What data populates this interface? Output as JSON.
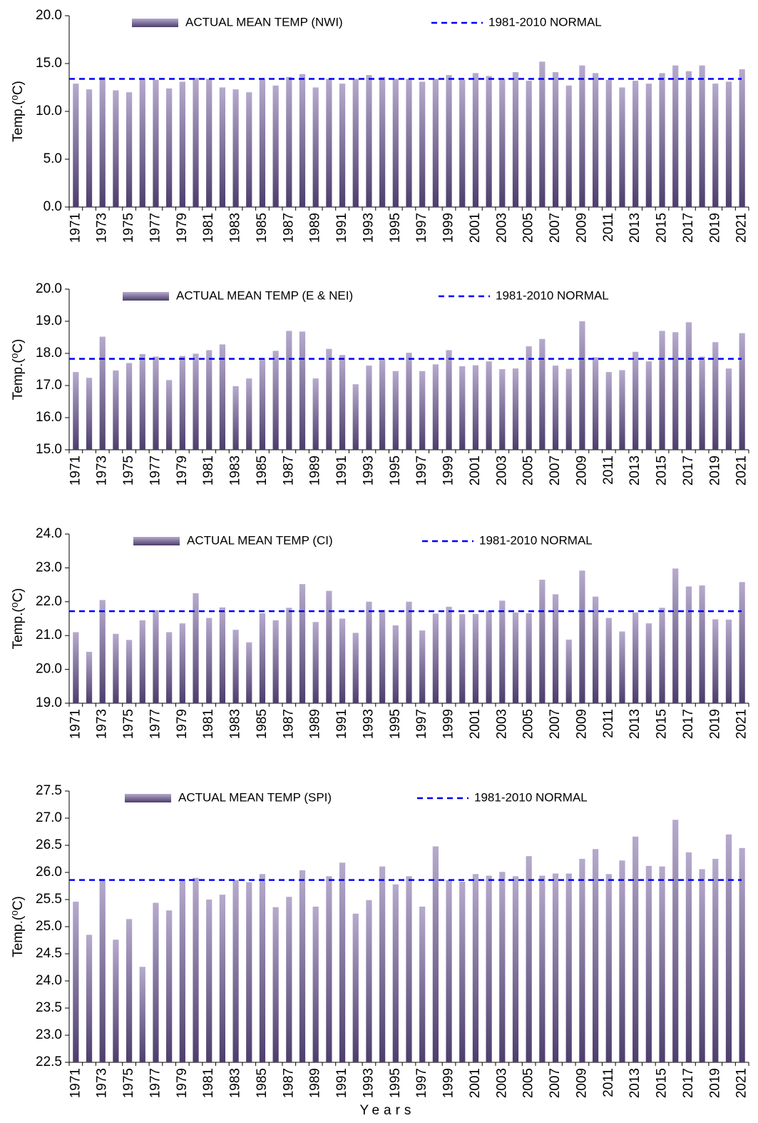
{
  "chart_data": [
    {
      "type": "bar",
      "y_label": "Temp.(⁰C)",
      "categories": [
        "1971",
        null,
        "1973",
        null,
        "1975",
        null,
        "1977",
        null,
        "1979",
        null,
        "1981",
        null,
        "1983",
        null,
        "1985",
        null,
        "1987",
        null,
        "1989",
        null,
        "1991",
        null,
        "1993",
        null,
        "1995",
        null,
        "1997",
        null,
        "1999",
        null,
        "2001",
        null,
        "2003",
        null,
        "2005",
        null,
        "2007",
        null,
        "2009",
        null,
        "2011",
        null,
        "2013",
        null,
        "2015",
        null,
        "2017",
        null,
        "2019",
        null,
        "2021"
      ],
      "series": [
        {
          "name": "ACTUAL MEAN TEMP (NWI)",
          "color": "#7a6a9a",
          "values": [
            12.9,
            12.3,
            13.6,
            12.2,
            12.0,
            13.4,
            13.3,
            12.4,
            13.1,
            13.5,
            13.4,
            12.5,
            12.3,
            12.0,
            13.4,
            12.7,
            13.6,
            13.9,
            12.5,
            13.4,
            12.9,
            13.4,
            13.8,
            13.6,
            13.4,
            13.4,
            13.1,
            13.4,
            13.8,
            13.3,
            14.0,
            13.7,
            13.4,
            14.1,
            13.2,
            15.2,
            14.1,
            12.7,
            14.8,
            14.0,
            13.3,
            12.5,
            13.2,
            12.9,
            14.0,
            14.8,
            14.2,
            14.8,
            12.9,
            13.1,
            14.4
          ]
        }
      ],
      "reference_line": {
        "name": "1981-2010 NORMAL",
        "value": 13.4,
        "color": "#0000ff"
      },
      "ylim": [
        0,
        20
      ],
      "yticks": [
        {
          "value": 0,
          "label": "0.0"
        },
        {
          "value": 5,
          "label": "5.0"
        },
        {
          "value": 10,
          "label": "10.0"
        },
        {
          "value": 15,
          "label": "15.0"
        },
        {
          "value": 20,
          "label": "20.0"
        }
      ]
    },
    {
      "type": "bar",
      "y_label": "Temp.(⁰C)",
      "categories": [
        "1971",
        null,
        "1973",
        null,
        "1975",
        null,
        "1977",
        null,
        "1979",
        null,
        "1981",
        null,
        "1983",
        null,
        "1985",
        null,
        "1987",
        null,
        "1989",
        null,
        "1991",
        null,
        "1993",
        null,
        "1995",
        null,
        "1997",
        null,
        "1999",
        null,
        "2001",
        null,
        "2003",
        null,
        "2005",
        null,
        "2007",
        null,
        "2009",
        null,
        "2011",
        null,
        "2013",
        null,
        "2015",
        null,
        "2017",
        null,
        "2019",
        null,
        "2021"
      ],
      "series": [
        {
          "name": "ACTUAL MEAN TEMP (E & NEI)",
          "color": "#7a6a9a",
          "values": [
            17.42,
            17.24,
            18.52,
            17.47,
            17.7,
            17.98,
            17.9,
            17.17,
            17.92,
            17.99,
            18.1,
            18.28,
            16.98,
            17.22,
            17.85,
            18.08,
            18.7,
            18.68,
            17.22,
            18.14,
            17.95,
            17.04,
            17.62,
            17.83,
            17.45,
            18.02,
            17.45,
            17.66,
            18.1,
            17.6,
            17.63,
            17.75,
            17.51,
            17.53,
            18.22,
            18.45,
            17.62,
            17.52,
            19.0,
            17.88,
            17.42,
            17.48,
            18.05,
            17.75,
            18.7,
            18.66,
            18.97,
            17.9,
            18.35,
            17.53,
            18.63
          ]
        }
      ],
      "reference_line": {
        "name": "1981-2010 NORMAL",
        "value": 17.83,
        "color": "#0000ff"
      },
      "ylim": [
        15,
        20
      ],
      "yticks": [
        {
          "value": 15,
          "label": "15.0"
        },
        {
          "value": 16,
          "label": "16.0"
        },
        {
          "value": 17,
          "label": "17.0"
        },
        {
          "value": 18,
          "label": "18.0"
        },
        {
          "value": 19,
          "label": "19.0"
        },
        {
          "value": 20,
          "label": "20.0"
        }
      ]
    },
    {
      "type": "bar",
      "y_label": "Temp.(⁰C)",
      "categories": [
        "1971",
        null,
        "1973",
        null,
        "1975",
        null,
        "1977",
        null,
        "1979",
        null,
        "1981",
        null,
        "1983",
        null,
        "1985",
        null,
        "1987",
        null,
        "1989",
        null,
        "1991",
        null,
        "1993",
        null,
        "1995",
        null,
        "1997",
        null,
        "1999",
        null,
        "2001",
        null,
        "2003",
        null,
        "2005",
        null,
        "2007",
        null,
        "2009",
        null,
        "2011",
        null,
        "2013",
        null,
        "2015",
        null,
        "2017",
        null,
        "2019",
        null,
        "2021"
      ],
      "series": [
        {
          "name": "ACTUAL MEAN TEMP (CI)",
          "color": "#7a6a9a",
          "values": [
            21.1,
            20.52,
            22.05,
            21.05,
            20.87,
            21.45,
            21.75,
            21.1,
            21.36,
            22.25,
            21.52,
            21.83,
            21.17,
            20.8,
            21.66,
            21.45,
            21.82,
            22.52,
            21.4,
            22.32,
            21.5,
            21.08,
            22.0,
            21.76,
            21.3,
            22.0,
            21.15,
            21.65,
            21.85,
            21.63,
            21.64,
            21.73,
            22.03,
            21.68,
            21.66,
            22.65,
            22.22,
            20.88,
            22.92,
            22.15,
            21.52,
            21.12,
            21.68,
            21.36,
            21.82,
            22.98,
            22.45,
            22.48,
            21.48,
            21.47,
            22.58
          ]
        }
      ],
      "reference_line": {
        "name": "1981-2010 NORMAL",
        "value": 21.72,
        "color": "#0000ff"
      },
      "ylim": [
        19,
        24
      ],
      "yticks": [
        {
          "value": 19,
          "label": "19.0"
        },
        {
          "value": 20,
          "label": "20.0"
        },
        {
          "value": 21,
          "label": "21.0"
        },
        {
          "value": 22,
          "label": "22.0"
        },
        {
          "value": 23,
          "label": "23.0"
        },
        {
          "value": 24,
          "label": "24.0"
        }
      ]
    },
    {
      "type": "bar",
      "y_label": "Temp.(⁰C)",
      "x_label": "Years",
      "categories": [
        "1971",
        null,
        "1973",
        null,
        "1975",
        null,
        "1977",
        null,
        "1979",
        null,
        "1981",
        null,
        "1983",
        null,
        "1985",
        null,
        "1987",
        null,
        "1989",
        null,
        "1991",
        null,
        "1993",
        null,
        "1995",
        null,
        "1997",
        null,
        "1999",
        null,
        "2001",
        null,
        "2003",
        null,
        "2005",
        null,
        "2007",
        null,
        "2009",
        null,
        "2011",
        null,
        "2013",
        null,
        "2015",
        null,
        "2017",
        null,
        "2019",
        null,
        "2021"
      ],
      "series": [
        {
          "name": "ACTUAL MEAN TEMP (SPI)",
          "color": "#7a6a9a",
          "values": [
            25.46,
            24.85,
            25.88,
            24.76,
            25.14,
            24.26,
            25.44,
            25.3,
            25.88,
            25.9,
            25.5,
            25.59,
            25.86,
            25.82,
            25.97,
            25.36,
            25.55,
            26.04,
            25.37,
            25.93,
            26.18,
            25.24,
            25.49,
            26.11,
            25.78,
            25.93,
            25.37,
            26.48,
            25.86,
            25.83,
            25.97,
            25.94,
            26.01,
            25.93,
            26.3,
            25.94,
            25.98,
            25.98,
            26.25,
            26.43,
            25.97,
            26.22,
            26.66,
            26.12,
            26.11,
            26.97,
            26.37,
            26.06,
            26.25,
            26.7,
            26.45
          ]
        }
      ],
      "reference_line": {
        "name": "1981-2010 NORMAL",
        "value": 25.86,
        "color": "#0000ff"
      },
      "ylim": [
        22.5,
        27.5
      ],
      "yticks": [
        {
          "value": 22.5,
          "label": "22.5"
        },
        {
          "value": 23,
          "label": "23.0"
        },
        {
          "value": 23.5,
          "label": "23.5"
        },
        {
          "value": 24,
          "label": "24.0"
        },
        {
          "value": 24.5,
          "label": "24.5"
        },
        {
          "value": 25,
          "label": "25.0"
        },
        {
          "value": 25.5,
          "label": "25.5"
        },
        {
          "value": 26,
          "label": "26.0"
        },
        {
          "value": 26.5,
          "label": "26.5"
        },
        {
          "value": 27,
          "label": "27.0"
        },
        {
          "value": 27.5,
          "label": "27.5"
        }
      ]
    }
  ]
}
